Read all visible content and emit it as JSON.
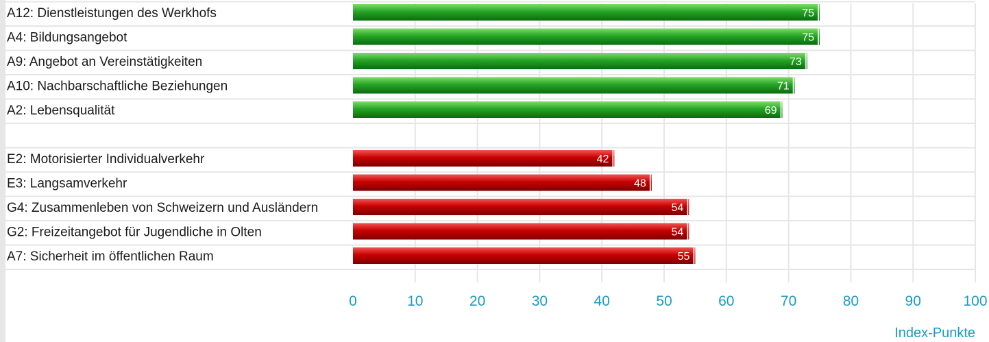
{
  "chart_data": {
    "type": "bar",
    "orientation": "horizontal",
    "groups": [
      {
        "color": "#1e9e1e",
        "items": [
          {
            "label": "A12: Dienstleistungen des Werkhofs",
            "value": 75
          },
          {
            "label": "A4: Bildungsangebot",
            "value": 75
          },
          {
            "label": "A9: Angebot an Vereinstätigkeiten",
            "value": 73
          },
          {
            "label": "A10: Nachbarschaftliche Beziehungen",
            "value": 71
          },
          {
            "label": "A2: Lebensqualität",
            "value": 69
          }
        ]
      },
      {
        "color": "#cc0000",
        "items": [
          {
            "label": "E2: Motorisierter Individualverkehr",
            "value": 42
          },
          {
            "label": "E3: Langsamverkehr",
            "value": 48
          },
          {
            "label": "G4: Zusammenleben von Schweizern und Ausländern",
            "value": 54
          },
          {
            "label": "G2: Freizeitangebot für Jugendliche in Olten",
            "value": 54
          },
          {
            "label": "A7: Sicherheit im öffentlichen Raum",
            "value": 55
          }
        ]
      }
    ],
    "xlim": [
      0,
      100
    ],
    "xticks": [
      "0",
      "10",
      "20",
      "30",
      "40",
      "50",
      "60",
      "70",
      "80",
      "90",
      "100"
    ],
    "xlabel": "Index-Punkte",
    "grid": true,
    "colors": {
      "axis_text": "#1a9bc4",
      "label_text": "#1a1a1a",
      "grid": "#e6e6e6"
    }
  }
}
